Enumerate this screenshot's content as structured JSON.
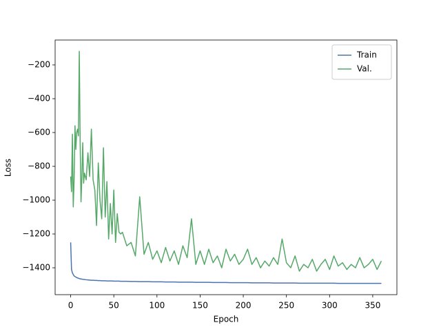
{
  "chart_data": {
    "type": "line",
    "x_label": "Epoch",
    "y_label": "Loss",
    "x": [
      0,
      1,
      2,
      3,
      4,
      5,
      6,
      7,
      8,
      9,
      10,
      11,
      12,
      13,
      14,
      15,
      16,
      18,
      20,
      22,
      24,
      26,
      28,
      30,
      32,
      34,
      36,
      38,
      40,
      42,
      44,
      46,
      48,
      50,
      52,
      54,
      56,
      58,
      60,
      65,
      70,
      75,
      80,
      85,
      90,
      95,
      100,
      105,
      110,
      115,
      120,
      125,
      130,
      135,
      140,
      145,
      150,
      155,
      160,
      165,
      170,
      175,
      180,
      185,
      190,
      195,
      200,
      205,
      210,
      215,
      220,
      225,
      230,
      235,
      240,
      245,
      250,
      255,
      260,
      265,
      270,
      275,
      280,
      285,
      290,
      295,
      300,
      305,
      310,
      315,
      320,
      325,
      330,
      335,
      340,
      345,
      350,
      355,
      360
    ],
    "series": [
      {
        "name": "Train",
        "color": "#4c72b0",
        "values": [
          -1250,
          -1410,
          -1430,
          -1440,
          -1448,
          -1452,
          -1455,
          -1458,
          -1460,
          -1462,
          -1464,
          -1465,
          -1466,
          -1467,
          -1468,
          -1469,
          -1469,
          -1471,
          -1472,
          -1473,
          -1474,
          -1474,
          -1475,
          -1475,
          -1476,
          -1476,
          -1477,
          -1477,
          -1477,
          -1478,
          -1478,
          -1478,
          -1478,
          -1479,
          -1479,
          -1479,
          -1479,
          -1480,
          -1480,
          -1480,
          -1481,
          -1481,
          -1482,
          -1482,
          -1482,
          -1483,
          -1483,
          -1483,
          -1484,
          -1484,
          -1484,
          -1485,
          -1485,
          -1485,
          -1485,
          -1486,
          -1486,
          -1486,
          -1486,
          -1487,
          -1487,
          -1487,
          -1487,
          -1488,
          -1488,
          -1488,
          -1488,
          -1488,
          -1489,
          -1489,
          -1489,
          -1489,
          -1489,
          -1490,
          -1490,
          -1490,
          -1490,
          -1490,
          -1490,
          -1491,
          -1491,
          -1491,
          -1491,
          -1491,
          -1491,
          -1491,
          -1491,
          -1491,
          -1492,
          -1492,
          -1492,
          -1492,
          -1492,
          -1492,
          -1492,
          -1492,
          -1492,
          -1492,
          -1492
        ]
      },
      {
        "name": "Val.",
        "color": "#55a868",
        "values": [
          -860,
          -950,
          -610,
          -1040,
          -880,
          -560,
          -700,
          -600,
          -580,
          -620,
          -120,
          -650,
          -1010,
          -860,
          -660,
          -900,
          -840,
          -880,
          -720,
          -860,
          -580,
          -880,
          -940,
          -1150,
          -780,
          -1000,
          -1110,
          -690,
          -1100,
          -890,
          -1230,
          -1020,
          -1200,
          -940,
          -1250,
          -1080,
          -1190,
          -1200,
          -1190,
          -1270,
          -1250,
          -1330,
          -980,
          -1320,
          -1250,
          -1350,
          -1300,
          -1370,
          -1280,
          -1360,
          -1300,
          -1380,
          -1270,
          -1340,
          -1110,
          -1380,
          -1300,
          -1380,
          -1290,
          -1370,
          -1330,
          -1400,
          -1290,
          -1360,
          -1320,
          -1380,
          -1350,
          -1290,
          -1380,
          -1340,
          -1400,
          -1360,
          -1390,
          -1340,
          -1380,
          -1230,
          -1370,
          -1400,
          -1330,
          -1420,
          -1380,
          -1400,
          -1350,
          -1420,
          -1380,
          -1350,
          -1410,
          -1330,
          -1390,
          -1370,
          -1410,
          -1380,
          -1400,
          -1340,
          -1400,
          -1380,
          -1350,
          -1410,
          -1360
        ]
      }
    ],
    "xlim": [
      -18,
      378
    ],
    "ylim": [
      -1559,
      -53
    ],
    "xticks": [
      0,
      50,
      100,
      150,
      200,
      250,
      300,
      350
    ],
    "yticks": [
      {
        "value": -1400,
        "label": "−1400"
      },
      {
        "value": -1200,
        "label": "−1200"
      },
      {
        "value": -1000,
        "label": "−1000"
      },
      {
        "value": -800,
        "label": "−800"
      },
      {
        "value": -600,
        "label": "−600"
      },
      {
        "value": -400,
        "label": "−400"
      },
      {
        "value": -200,
        "label": "−200"
      }
    ],
    "legend": "upper right"
  }
}
